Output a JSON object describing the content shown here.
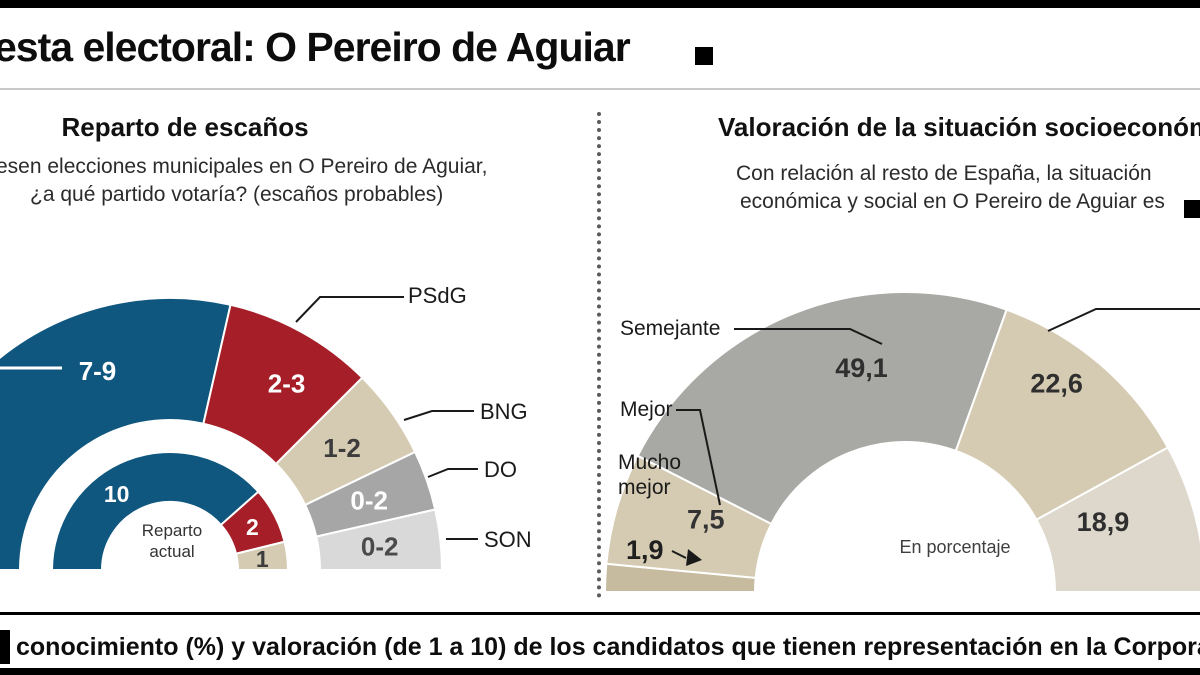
{
  "page": {
    "masthead_title": "esta electoral: O Pereiro de Aguiar",
    "footer_text": "conocimiento (%) y valoración (de 1 a 10) de los candidatos que tienen representación en la Corporación"
  },
  "chart_data": [
    {
      "type": "pie",
      "shape": "half-donut",
      "title": "Reparto de escaños",
      "question_line1": "esen elecciones municipales en O Pereiro de Aguiar,",
      "question_line2": "¿a qué partido votaría? (escaños probables)",
      "rings": [
        {
          "name": "escaños probables",
          "segments": [
            {
              "label": "",
              "value_label": "7-9",
              "weight": 8,
              "color": "#10577f",
              "text_color": "#ffffff",
              "label_angle": 110,
              "label_r": 212
            },
            {
              "label": "PSdG",
              "value_label": "2-3",
              "weight": 2.5,
              "color": "#a61e27",
              "text_color": "#ffffff",
              "label_angle": 58,
              "label_r": 220
            },
            {
              "label": "BNG",
              "value_label": "1-2",
              "weight": 1.5,
              "color": "#d5cbb2",
              "text_color": "#3c3c3c"
            },
            {
              "label": "DO",
              "value_label": "0-2",
              "weight": 1,
              "color": "#a6a6a6",
              "text_color": "#ffffff"
            },
            {
              "label": "SON",
              "value_label": "0-2",
              "weight": 1,
              "color": "#d9d9d9",
              "text_color": "#4a4a4a"
            }
          ]
        },
        {
          "name": "Reparto actual",
          "segments": [
            {
              "label": "",
              "value_label": "10",
              "weight": 10,
              "color": "#10577f",
              "text_color": "#ffffff",
              "label_angle": 125
            },
            {
              "label": "",
              "value_label": "2",
              "weight": 2,
              "color": "#a61e27",
              "text_color": "#ffffff"
            },
            {
              "label": "",
              "value_label": "1",
              "weight": 1,
              "color": "#d5cbb2",
              "text_color": "#3c3c3c"
            }
          ]
        }
      ]
    },
    {
      "type": "pie",
      "shape": "half-donut",
      "title": "Valoración de la situación socioeconómica",
      "subtitle_line1": "Con relación al resto de España, la situación",
      "subtitle_line2": "económica y social en O Pereiro de Aguiar es",
      "unit": "En porcentaje",
      "segments": [
        {
          "label": "Mucho mejor",
          "value": 1.9,
          "value_label": "",
          "external_value_label": "1,9",
          "weight": 3,
          "color": "#c6bb9e"
        },
        {
          "label": "Mejor",
          "value": 7.5,
          "value_label": "7,5",
          "weight": 12,
          "color": "#d5cbb2",
          "text_color": "#333333",
          "label_angle": 160,
          "label_r": 212
        },
        {
          "label": "Semejante",
          "value": 49.1,
          "value_label": "49,1",
          "weight": 46,
          "color": "#a8a8a4",
          "text_color": "#2f2f2f",
          "label_angle": 101,
          "label_r": 228
        },
        {
          "label": "",
          "value": 22.6,
          "value_label": "22,6",
          "weight": 23,
          "color": "#d5cbb2",
          "text_color": "#2f2f2f",
          "label_angle": 54,
          "label_r": 258
        },
        {
          "label": "",
          "value": 18.9,
          "value_label": "18,9",
          "weight": 16,
          "color": "#ddd8cb",
          "text_color": "#2f2f2f",
          "label_angle": 19.5,
          "label_r": 210
        }
      ]
    }
  ]
}
